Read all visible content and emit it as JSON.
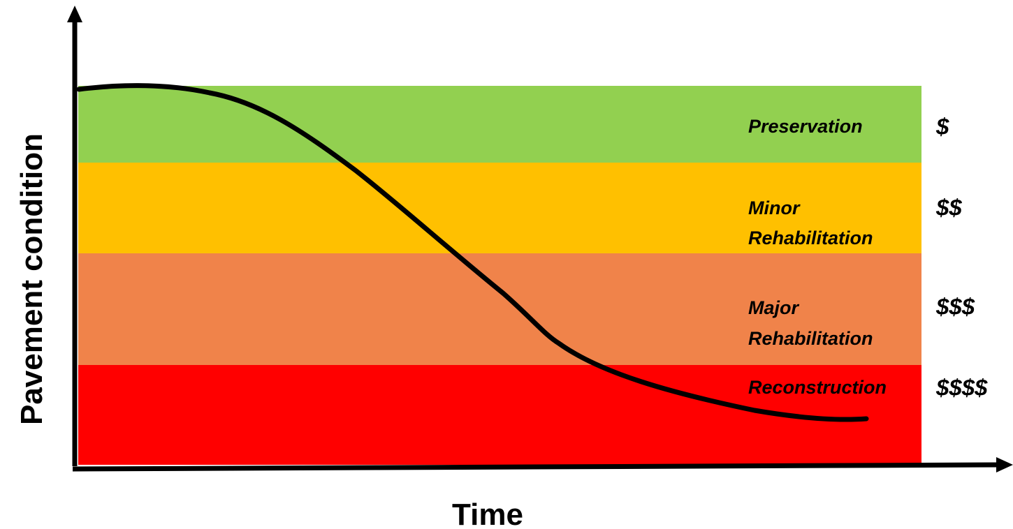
{
  "diagram": {
    "x_axis_label": "Time",
    "y_axis_label": "Pavement condition",
    "bands": [
      {
        "id": "preservation",
        "lines": [
          "Preservation"
        ],
        "cost": "$",
        "color": "#92d050"
      },
      {
        "id": "minor",
        "lines": [
          "Minor",
          "Rehabilitation"
        ],
        "cost": "$$",
        "color": "#ffc000"
      },
      {
        "id": "major",
        "lines": [
          "Major",
          "Rehabilitation"
        ],
        "cost": "$$$",
        "color": "#f0834a"
      },
      {
        "id": "reconstruction",
        "lines": [
          "Reconstruction"
        ],
        "cost": "$$$$",
        "color": "#ff0000"
      }
    ],
    "curve_color": "#000000",
    "axis_color": "#000000"
  }
}
